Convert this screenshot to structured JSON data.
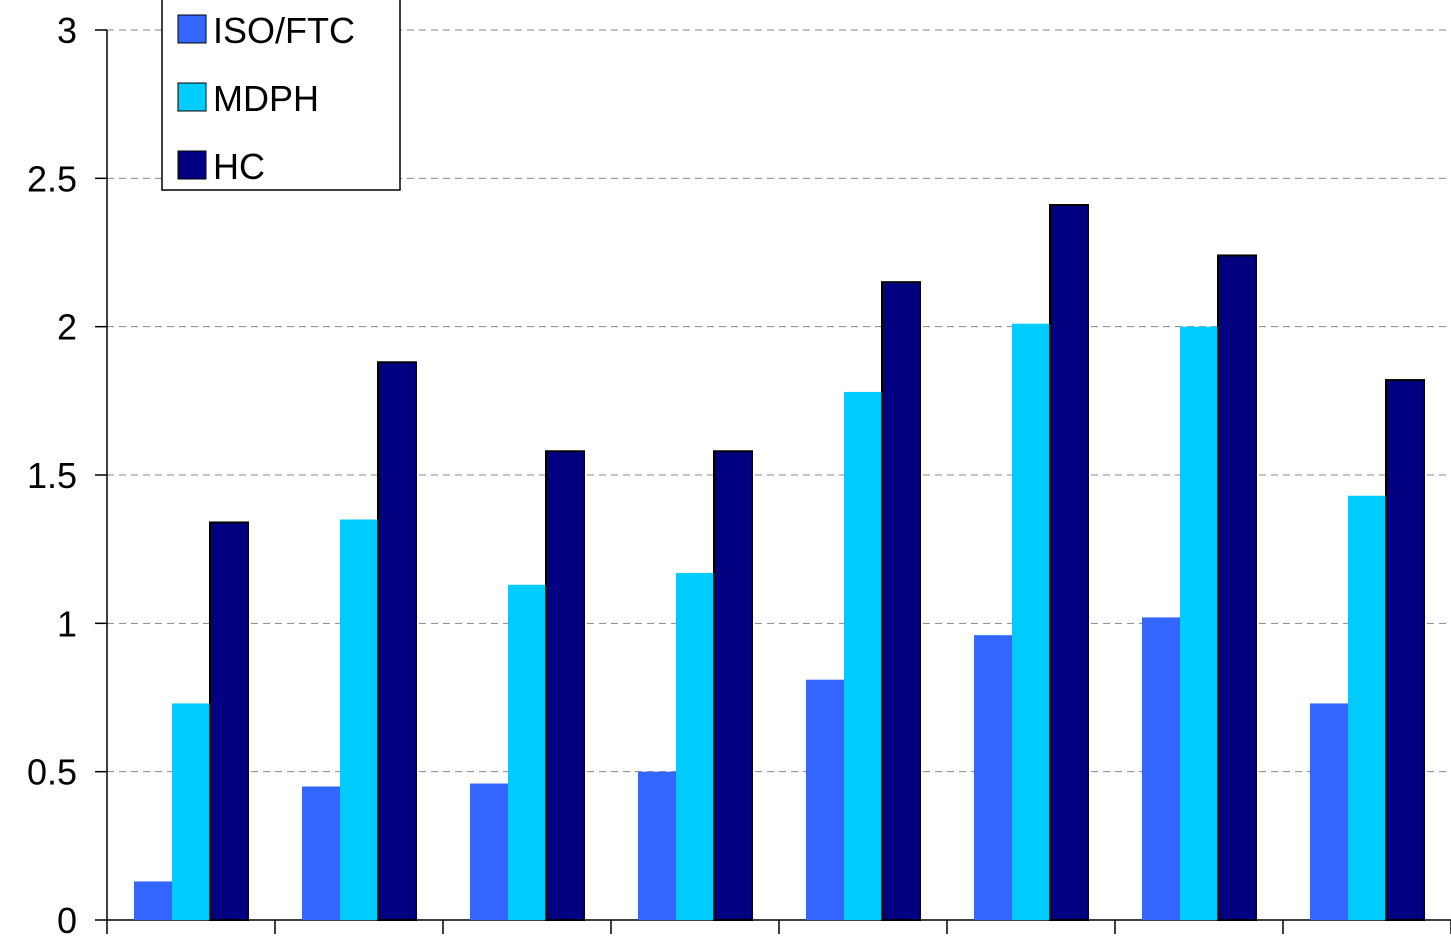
{
  "chart_data": {
    "type": "bar",
    "title": "",
    "xlabel": "",
    "ylabel": "",
    "ylim": [
      0,
      3
    ],
    "yticks": [
      "0",
      "0.5",
      "1",
      "1.5",
      "2",
      "2.5",
      "3"
    ],
    "grid": true,
    "legend_position": "top-left",
    "categories": [
      "",
      "",
      "",
      "",
      "",
      "",
      "",
      ""
    ],
    "series": [
      {
        "name": "ISO/FTC",
        "color": "#3366ff",
        "values": [
          0.13,
          0.45,
          0.46,
          0.5,
          0.81,
          0.96,
          1.02,
          0.73
        ]
      },
      {
        "name": "MDPH",
        "color": "#00ccff",
        "values": [
          0.73,
          1.35,
          1.13,
          1.17,
          1.78,
          2.01,
          2.0,
          1.43
        ]
      },
      {
        "name": "HC",
        "color": "#000080",
        "values": [
          1.34,
          1.88,
          1.58,
          1.58,
          2.15,
          2.41,
          2.24,
          1.82
        ]
      }
    ]
  }
}
